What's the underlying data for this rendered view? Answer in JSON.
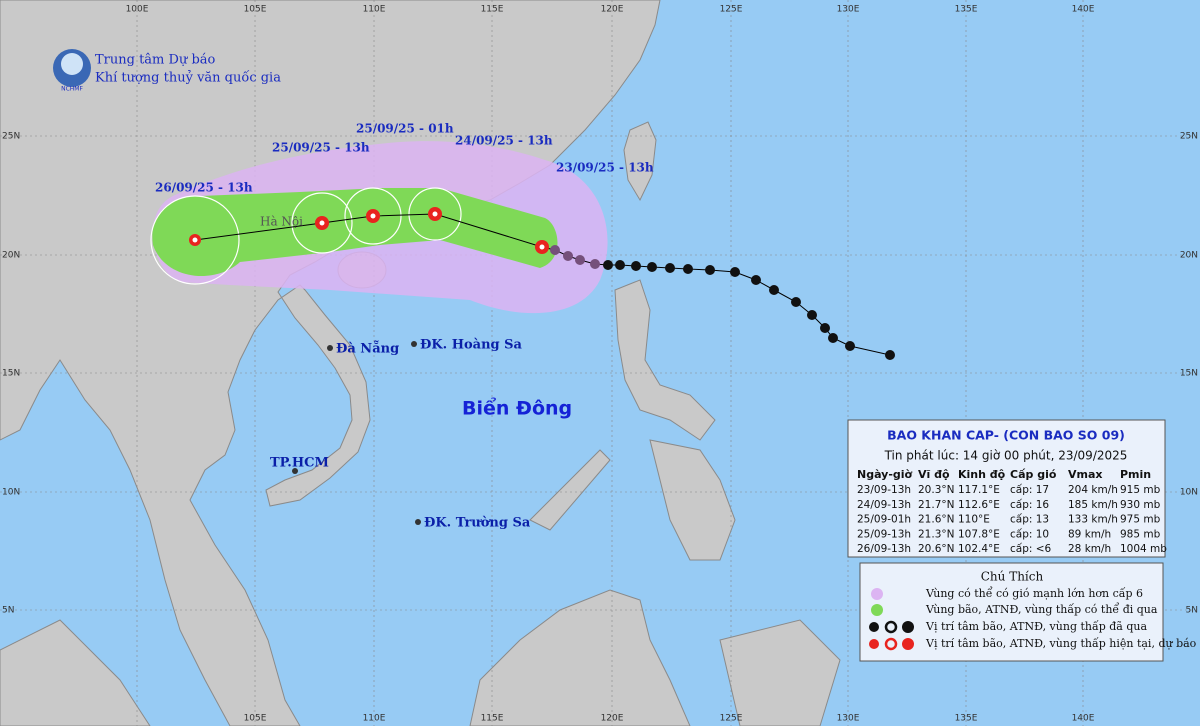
{
  "header": {
    "org_line1": "Trung tâm Dự báo",
    "org_line2": "Khí tượng thuỷ văn quốc gia",
    "logo_text": "NCHMF"
  },
  "lon_labels": [
    "100E",
    "105E",
    "110E",
    "115E",
    "120E",
    "125E",
    "130E",
    "135E",
    "140E"
  ],
  "lat_labels": [
    "25N",
    "20N",
    "15N",
    "10N",
    "5N"
  ],
  "forecast_times": [
    "26/09/25 - 13h",
    "25/09/25 - 13h",
    "25/09/25 - 01h",
    "24/09/25 - 13h",
    "23/09/25 - 13h"
  ],
  "places": [
    "Hà Nội",
    "Đà Nẵng",
    "ĐK. Hoàng Sa",
    "TP.HCM",
    "ĐK. Trường Sa",
    "Biển Đông"
  ],
  "bulletin": {
    "title": "BAO KHAN CAP- (CON BAO SO 09)",
    "issued": "Tin phát lúc: 14 giờ 00 phút, 23/09/2025",
    "columns": [
      "Ngày-giờ",
      "Vĩ độ",
      "Kinh độ",
      "Cấp gió",
      "Vmax",
      "Pmin"
    ],
    "rows": [
      [
        "23/09-13h",
        "20.3°N",
        "117.1°E",
        "cấp: 17",
        "204 km/h",
        "915 mb"
      ],
      [
        "24/09-13h",
        "21.7°N",
        "112.6°E",
        "cấp: 16",
        "185 km/h",
        "930 mb"
      ],
      [
        "25/09-01h",
        "21.6°N",
        "110°E",
        "cấp: 13",
        "133 km/h",
        "975 mb"
      ],
      [
        "25/09-13h",
        "21.3°N",
        "107.8°E",
        "cấp: 10",
        "89 km/h",
        "985 mb"
      ],
      [
        "26/09-13h",
        "20.6°N",
        "102.4°E",
        "cấp: <6",
        "28 km/h",
        "1004 mb"
      ]
    ]
  },
  "legend": {
    "title": "Chú Thích",
    "items": [
      "Vùng có thể có gió mạnh lớn hơn cấp 6",
      "Vùng bão, ATNĐ, vùng thấp có thể đi qua",
      "Vị trí tâm bão, ATNĐ, vùng thấp đã qua",
      "Vị trí tâm bão, ATNĐ, vùng thấp hiện tại, dự báo"
    ]
  }
}
